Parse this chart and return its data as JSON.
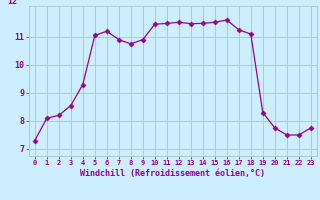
{
  "x": [
    0,
    1,
    2,
    3,
    4,
    5,
    6,
    7,
    8,
    9,
    10,
    11,
    12,
    13,
    14,
    15,
    16,
    17,
    18,
    19,
    20,
    21,
    22,
    23
  ],
  "y": [
    7.3,
    8.1,
    8.2,
    8.55,
    9.3,
    11.05,
    11.2,
    10.9,
    10.75,
    10.9,
    11.45,
    11.48,
    11.52,
    11.47,
    11.48,
    11.52,
    11.6,
    11.25,
    11.1,
    8.3,
    7.75,
    7.5,
    7.5,
    7.75
  ],
  "line_color": "#990099",
  "marker": "D",
  "marker_size": 2.5,
  "bg_color": "#cceeff",
  "grid_color": "#aacccc",
  "xlabel": "Windchill (Refroidissement éolien,°C)",
  "ylim": [
    6.75,
    12.1
  ],
  "xlim": [
    -0.5,
    23.5
  ],
  "xticks": [
    0,
    1,
    2,
    3,
    4,
    5,
    6,
    7,
    8,
    9,
    10,
    11,
    12,
    13,
    14,
    15,
    16,
    17,
    18,
    19,
    20,
    21,
    22,
    23
  ],
  "yticks": [
    7,
    8,
    9,
    10,
    11
  ],
  "font_color": "#990099"
}
